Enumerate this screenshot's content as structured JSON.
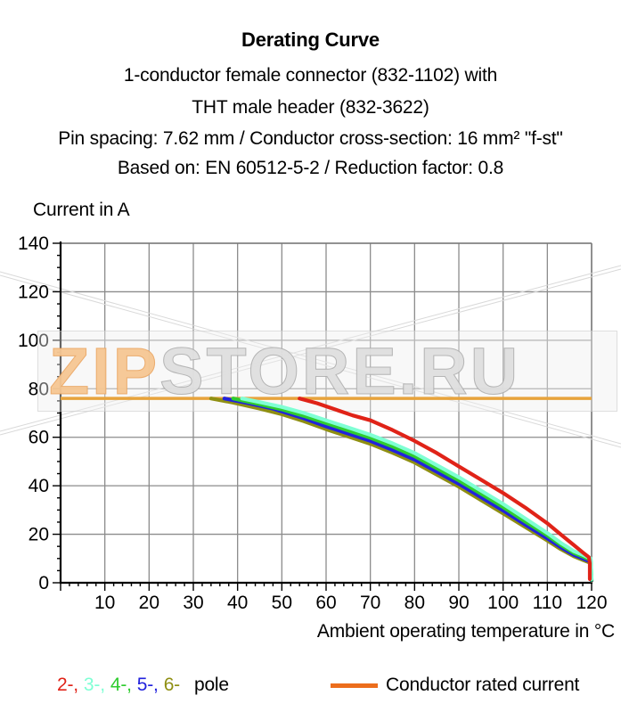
{
  "header": {
    "title": "Derating Curve",
    "subtitle_lines": [
      "1-conductor female connector (832-1102) with",
      "THT male header (832-3622)",
      "Pin spacing: 7.62 mm / Conductor cross-section: 16 mm² \"f-st\"",
      "Based on: EN 60512-5-2 / Reduction factor: 0.8"
    ]
  },
  "watermark": {
    "part1": "ZIP",
    "part2": "STORE.RU"
  },
  "chart_data": {
    "type": "line",
    "title": "Derating Curve",
    "ylabel": "Current in A",
    "xlabel": "Ambient operating temperature in °C",
    "xlim": [
      0,
      120
    ],
    "ylim": [
      0,
      140
    ],
    "x_major_step": 10,
    "x_minor_step": 2,
    "y_major_step": 20,
    "y_minor_step": 5,
    "grid": true,
    "grid_color": "#8c8c8c",
    "axis_color": "#000000",
    "rated_current_line": {
      "value": 76,
      "color": "#E7A33C",
      "label": "Conductor rated current"
    },
    "series": [
      {
        "name": "6-pole",
        "color": "#8F8F12",
        "points": [
          [
            34,
            76
          ],
          [
            39,
            74.3
          ],
          [
            45,
            71.8
          ],
          [
            50,
            69.5
          ],
          [
            55,
            66.6
          ],
          [
            60,
            63.3
          ],
          [
            65,
            60.3
          ],
          [
            70,
            57.3
          ],
          [
            75,
            53.6
          ],
          [
            80,
            49.6
          ],
          [
            85,
            44.6
          ],
          [
            90,
            39.6
          ],
          [
            95,
            34.1
          ],
          [
            100,
            28.6
          ],
          [
            105,
            23
          ],
          [
            110,
            17.4
          ],
          [
            113,
            13.9
          ],
          [
            116,
            10.9
          ],
          [
            118,
            9.4
          ],
          [
            119.7,
            8.2
          ],
          [
            120,
            0.8
          ]
        ]
      },
      {
        "name": "5-pole",
        "color": "#2222DD",
        "points": [
          [
            37,
            76
          ],
          [
            42,
            74.2
          ],
          [
            48,
            71.8
          ],
          [
            55,
            67.8
          ],
          [
            60,
            64.5
          ],
          [
            65,
            61.5
          ],
          [
            70,
            58.5
          ],
          [
            75,
            54.8
          ],
          [
            80,
            50.8
          ],
          [
            85,
            45.8
          ],
          [
            90,
            40.8
          ],
          [
            95,
            35.3
          ],
          [
            100,
            29.8
          ],
          [
            105,
            24
          ],
          [
            110,
            18.3
          ],
          [
            113,
            14.7
          ],
          [
            116,
            11.5
          ],
          [
            118,
            10
          ],
          [
            119.7,
            8.7
          ],
          [
            120,
            1
          ]
        ]
      },
      {
        "name": "4-pole",
        "color": "#2FCC2F",
        "points": [
          [
            39,
            76
          ],
          [
            44,
            74
          ],
          [
            50,
            71.5
          ],
          [
            55,
            68.8
          ],
          [
            60,
            65.8
          ],
          [
            65,
            62.8
          ],
          [
            70,
            59.8
          ],
          [
            75,
            56.2
          ],
          [
            80,
            52.2
          ],
          [
            85,
            47.2
          ],
          [
            90,
            42.2
          ],
          [
            95,
            36.7
          ],
          [
            100,
            31.2
          ],
          [
            105,
            25.2
          ],
          [
            110,
            19.5
          ],
          [
            113,
            15.7
          ],
          [
            116,
            12.3
          ],
          [
            118,
            10.8
          ],
          [
            119.8,
            9.3
          ],
          [
            120,
            1.2
          ]
        ]
      },
      {
        "name": "3-pole",
        "color": "#7FFFD4",
        "points": [
          [
            41,
            76
          ],
          [
            45,
            74.5
          ],
          [
            50,
            72.5
          ],
          [
            55,
            70
          ],
          [
            60,
            67
          ],
          [
            65,
            64
          ],
          [
            70,
            61
          ],
          [
            75,
            57.5
          ],
          [
            80,
            53.5
          ],
          [
            85,
            48.5
          ],
          [
            90,
            43.5
          ],
          [
            95,
            38
          ],
          [
            100,
            32.5
          ],
          [
            105,
            26.5
          ],
          [
            110,
            20.5
          ],
          [
            113,
            16.5
          ],
          [
            116,
            13
          ],
          [
            118,
            11.5
          ],
          [
            119.8,
            10
          ],
          [
            120,
            1.5
          ]
        ]
      },
      {
        "name": "2-pole",
        "color": "#E02318",
        "points": [
          [
            54,
            76
          ],
          [
            58,
            74
          ],
          [
            62,
            71.5
          ],
          [
            66,
            69
          ],
          [
            70,
            67
          ],
          [
            75,
            63
          ],
          [
            80,
            58.5
          ],
          [
            85,
            53.5
          ],
          [
            90,
            48
          ],
          [
            95,
            42.5
          ],
          [
            100,
            37
          ],
          [
            105,
            31
          ],
          [
            110,
            24.5
          ],
          [
            113,
            20
          ],
          [
            116,
            15.5
          ],
          [
            118,
            12.5
          ],
          [
            119.4,
            10.5
          ],
          [
            119.6,
            8
          ],
          [
            119.6,
            1.5
          ]
        ]
      }
    ]
  },
  "legend": {
    "pole_items": [
      {
        "label": "2-,",
        "color": "#E02318"
      },
      {
        "label": "3-,",
        "color": "#7FFFD4"
      },
      {
        "label": "4-,",
        "color": "#2FCC2F"
      },
      {
        "label": "5-,",
        "color": "#2222DD"
      },
      {
        "label": "6-",
        "color": "#8F8F12"
      }
    ],
    "pole_suffix": "pole",
    "rated_label": "Conductor rated current",
    "rated_swatch_color": "#EC6D1C"
  }
}
